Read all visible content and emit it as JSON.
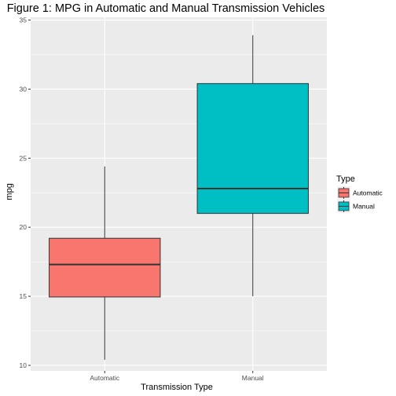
{
  "chart_data": {
    "type": "boxplot",
    "title": "Figure 1: MPG in Automatic and Manual Transmission Vehicles",
    "xlabel": "Transmission Type",
    "ylabel": "mpg",
    "ylim": [
      9.6,
      35.2
    ],
    "y_ticks": [
      10,
      15,
      20,
      25,
      30,
      35
    ],
    "y_tick_labels": [
      "10",
      "15",
      "20",
      "25",
      "30",
      "35"
    ],
    "categories": [
      "Automatic",
      "Manual"
    ],
    "series": [
      {
        "category": "Automatic",
        "min": 10.4,
        "q1": 14.95,
        "median": 17.3,
        "q3": 19.2,
        "max": 24.4,
        "color": "#F8766D"
      },
      {
        "category": "Manual",
        "min": 15.0,
        "q1": 21.0,
        "median": 22.8,
        "q3": 30.4,
        "max": 33.9,
        "color": "#00BFC4"
      }
    ],
    "legend": {
      "title": "Type",
      "position": "right",
      "items": [
        {
          "label": "Automatic",
          "color": "#F8766D"
        },
        {
          "label": "Manual",
          "color": "#00BFC4"
        }
      ]
    },
    "grid": true,
    "panel_background": "#EBEBEB",
    "grid_color": "#FFFFFF"
  }
}
